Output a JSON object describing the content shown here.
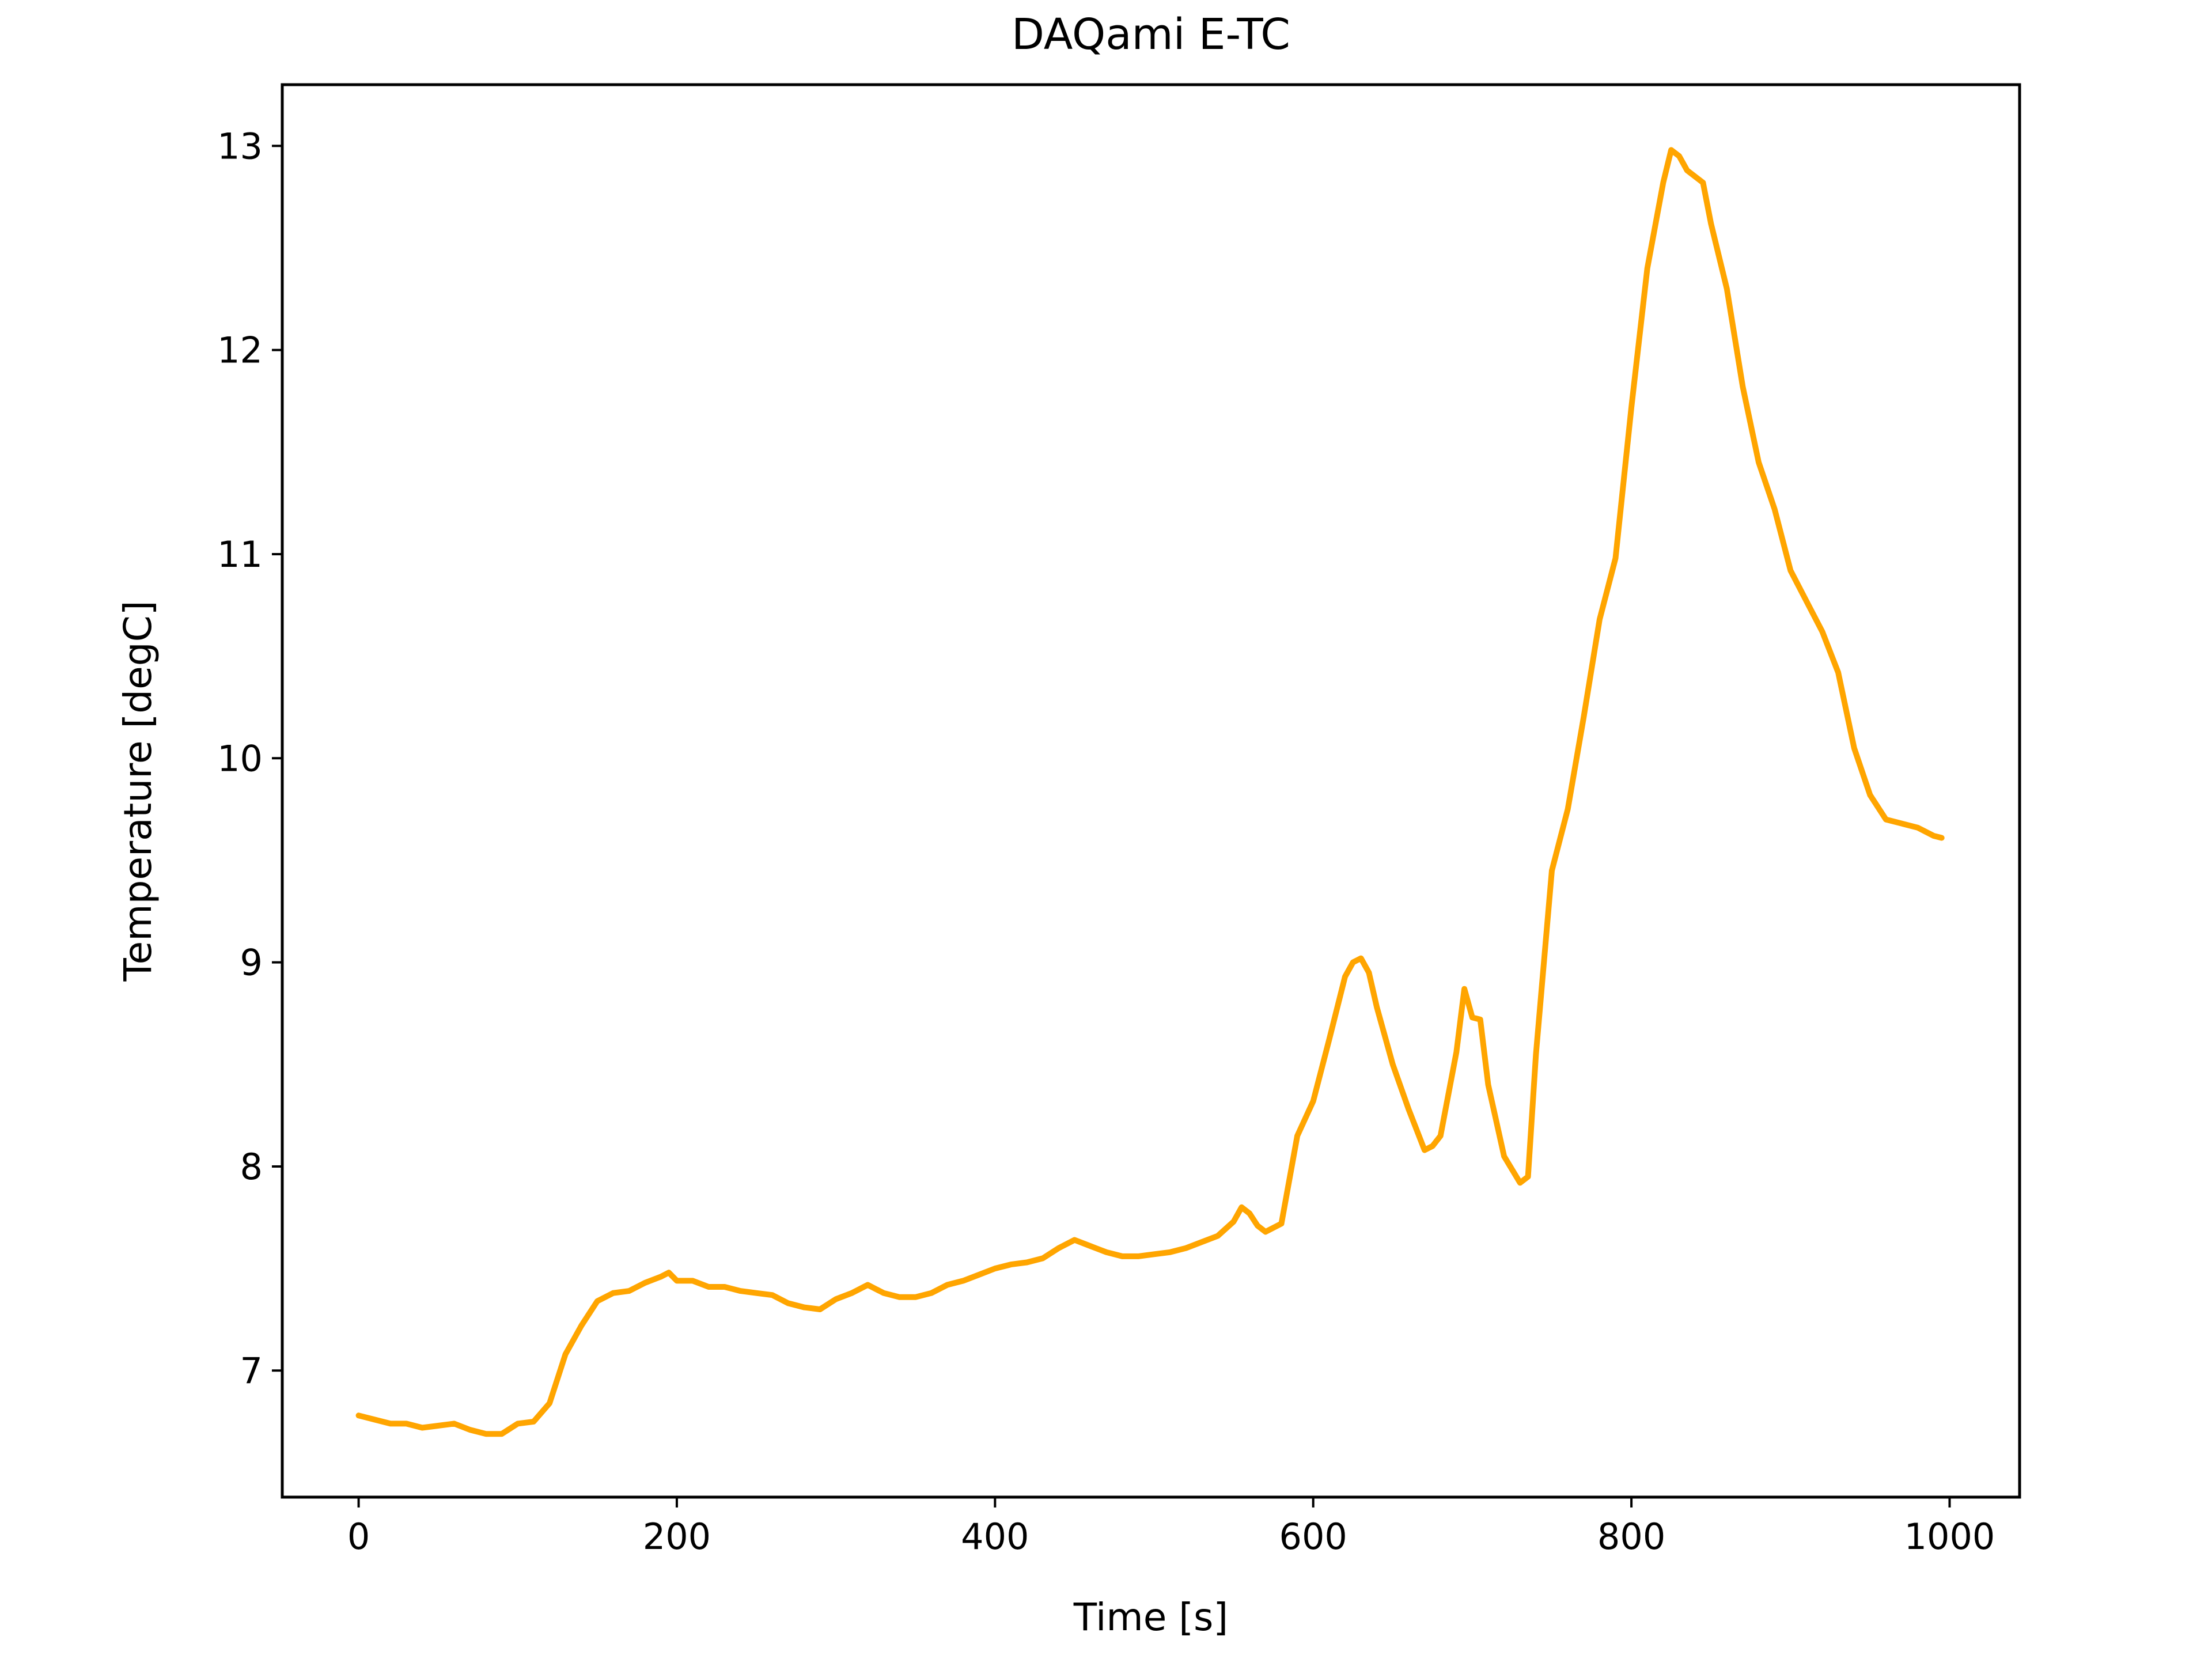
{
  "chart_data": {
    "type": "line",
    "title": "DAQami E-TC",
    "xlabel": "Time [s]",
    "ylabel": "Temperature [degC]",
    "xlim": [
      -48,
      1044
    ],
    "ylim": [
      6.38,
      13.3
    ],
    "xticks": [
      0,
      200,
      400,
      600,
      800,
      1000
    ],
    "yticks": [
      7,
      8,
      9,
      10,
      11,
      12,
      13
    ],
    "grid": false,
    "series": [
      {
        "color": "#FFA500",
        "x": [
          0,
          10,
          20,
          30,
          40,
          50,
          60,
          70,
          80,
          90,
          100,
          110,
          120,
          130,
          140,
          150,
          160,
          170,
          180,
          190,
          195,
          200,
          210,
          220,
          230,
          240,
          250,
          260,
          270,
          280,
          290,
          300,
          310,
          320,
          330,
          340,
          350,
          360,
          370,
          380,
          390,
          400,
          410,
          420,
          430,
          440,
          450,
          460,
          470,
          480,
          490,
          500,
          510,
          520,
          530,
          540,
          550,
          555,
          560,
          565,
          570,
          580,
          590,
          600,
          610,
          620,
          625,
          630,
          635,
          640,
          650,
          660,
          670,
          675,
          680,
          690,
          695,
          700,
          705,
          710,
          720,
          730,
          735,
          740,
          750,
          760,
          770,
          780,
          790,
          800,
          810,
          820,
          825,
          830,
          835,
          845,
          850,
          860,
          870,
          880,
          890,
          900,
          910,
          920,
          930,
          940,
          950,
          960,
          970,
          980,
          990,
          995
        ],
        "y": [
          6.78,
          6.76,
          6.74,
          6.74,
          6.72,
          6.73,
          6.74,
          6.71,
          6.69,
          6.69,
          6.74,
          6.75,
          6.84,
          7.08,
          7.22,
          7.34,
          7.38,
          7.39,
          7.43,
          7.46,
          7.48,
          7.44,
          7.44,
          7.41,
          7.41,
          7.39,
          7.38,
          7.37,
          7.33,
          7.31,
          7.3,
          7.35,
          7.38,
          7.42,
          7.38,
          7.36,
          7.36,
          7.38,
          7.42,
          7.44,
          7.47,
          7.5,
          7.52,
          7.53,
          7.55,
          7.6,
          7.64,
          7.61,
          7.58,
          7.56,
          7.56,
          7.57,
          7.58,
          7.6,
          7.63,
          7.66,
          7.73,
          7.8,
          7.77,
          7.71,
          7.68,
          7.72,
          8.15,
          8.32,
          8.62,
          8.93,
          9.0,
          9.02,
          8.95,
          8.78,
          8.5,
          8.28,
          8.08,
          8.1,
          8.15,
          8.56,
          8.87,
          8.73,
          8.72,
          8.4,
          8.05,
          7.92,
          7.95,
          8.55,
          9.45,
          9.75,
          10.2,
          10.68,
          10.98,
          11.72,
          12.4,
          12.82,
          12.98,
          12.95,
          12.88,
          12.82,
          12.62,
          12.3,
          11.82,
          11.45,
          11.22,
          10.92,
          10.77,
          10.62,
          10.42,
          10.05,
          9.82,
          9.7,
          9.68,
          9.66,
          9.62,
          9.61
        ]
      }
    ]
  }
}
